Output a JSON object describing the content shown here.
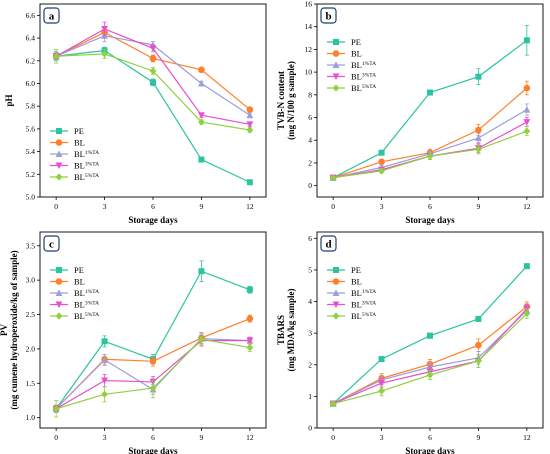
{
  "chart_data": [
    {
      "type": "line",
      "panel_label": "a",
      "xlabel": "Storage days",
      "ylabel": "pH",
      "x": [
        0,
        3,
        6,
        9,
        12
      ],
      "xlim": [
        -1,
        13
      ],
      "ylim": [
        5.0,
        6.7
      ],
      "yticks": [
        5.0,
        5.2,
        5.4,
        5.6,
        5.8,
        6.0,
        6.2,
        6.4,
        6.6
      ],
      "legend_position": "bottom-left",
      "series": [
        {
          "name": "PE",
          "sup": "",
          "color": "#2cc3a0",
          "marker": "square",
          "values": [
            6.24,
            6.29,
            6.01,
            5.33,
            5.13
          ],
          "errors": [
            0.04,
            0.03,
            0.03,
            0.02,
            0.01
          ]
        },
        {
          "name": "BL",
          "sup": "",
          "color": "#ff7f2a",
          "marker": "circle",
          "values": [
            6.24,
            6.45,
            6.22,
            6.12,
            5.77
          ],
          "errors": [
            0.03,
            0.04,
            0.03,
            0.02,
            0.02
          ]
        },
        {
          "name": "BL",
          "sup": "1%TA",
          "color": "#9aa0d8",
          "marker": "triangle-up",
          "values": [
            6.24,
            6.42,
            6.34,
            6.0,
            5.72
          ],
          "errors": [
            0.03,
            0.05,
            0.03,
            0.02,
            0.02
          ]
        },
        {
          "name": "BL",
          "sup": "3%TA",
          "color": "#e94fcf",
          "marker": "triangle-down",
          "values": [
            6.24,
            6.48,
            6.31,
            5.72,
            5.64
          ],
          "errors": [
            0.03,
            0.06,
            0.03,
            0.02,
            0.02
          ]
        },
        {
          "name": "BL",
          "sup": "5%TA",
          "color": "#8fd13f",
          "marker": "diamond",
          "values": [
            6.24,
            6.26,
            6.11,
            5.66,
            5.59
          ],
          "errors": [
            0.06,
            0.04,
            0.03,
            0.02,
            0.02
          ]
        }
      ]
    },
    {
      "type": "line",
      "panel_label": "b",
      "xlabel": "Storage days",
      "ylabel": "TVB-N content",
      "ylabel2": "(mg N/100 g sample)",
      "x": [
        0,
        3,
        6,
        9,
        12
      ],
      "xlim": [
        -1,
        13
      ],
      "ylim": [
        -1,
        16
      ],
      "yticks": [
        0,
        2,
        4,
        6,
        8,
        10,
        12,
        14,
        16
      ],
      "legend_position": "top-left",
      "series": [
        {
          "name": "PE",
          "sup": "",
          "color": "#2cc3a0",
          "marker": "square",
          "values": [
            0.7,
            2.9,
            8.2,
            9.6,
            12.8
          ],
          "errors": [
            0.1,
            0.2,
            0.2,
            0.7,
            1.3
          ]
        },
        {
          "name": "BL",
          "sup": "",
          "color": "#ff7f2a",
          "marker": "circle",
          "values": [
            0.7,
            2.1,
            2.9,
            4.9,
            8.6
          ],
          "errors": [
            0.1,
            0.2,
            0.3,
            0.5,
            0.6
          ]
        },
        {
          "name": "BL",
          "sup": "1%TA",
          "color": "#9aa0d8",
          "marker": "triangle-up",
          "values": [
            0.7,
            1.6,
            2.8,
            4.2,
            6.7
          ],
          "errors": [
            0.1,
            0.2,
            0.3,
            0.4,
            0.5
          ]
        },
        {
          "name": "BL",
          "sup": "3%TA",
          "color": "#e94fcf",
          "marker": "triangle-down",
          "values": [
            0.7,
            1.4,
            2.6,
            3.3,
            5.6
          ],
          "errors": [
            0.1,
            0.2,
            0.3,
            0.4,
            0.4
          ]
        },
        {
          "name": "BL",
          "sup": "5%TA",
          "color": "#8fd13f",
          "marker": "diamond",
          "values": [
            0.7,
            1.3,
            2.6,
            3.2,
            4.8
          ],
          "errors": [
            0.1,
            0.2,
            0.3,
            0.4,
            0.4
          ]
        }
      ]
    },
    {
      "type": "line",
      "panel_label": "c",
      "xlabel": "Storage days",
      "ylabel": "PV",
      "ylabel2": "(mg cumene hydroperoxide/kg of sample)",
      "x": [
        0,
        3,
        6,
        9,
        12
      ],
      "xlim": [
        -1,
        13
      ],
      "ylim": [
        0.85,
        3.7
      ],
      "yticks": [
        1.0,
        1.5,
        2.0,
        2.5,
        3.0,
        3.5
      ],
      "legend_position": "top-left",
      "series": [
        {
          "name": "PE",
          "sup": "",
          "color": "#2cc3a0",
          "marker": "square",
          "values": [
            1.13,
            2.11,
            1.85,
            3.13,
            2.86
          ],
          "errors": [
            0.05,
            0.08,
            0.07,
            0.15,
            0.05
          ]
        },
        {
          "name": "BL",
          "sup": "",
          "color": "#ff7f2a",
          "marker": "circle",
          "values": [
            1.13,
            1.85,
            1.82,
            2.16,
            2.44
          ],
          "errors": [
            0.05,
            0.07,
            0.07,
            0.08,
            0.05
          ]
        },
        {
          "name": "BL",
          "sup": "1%TA",
          "color": "#9aa0d8",
          "marker": "triangle-up",
          "values": [
            1.13,
            1.84,
            1.41,
            2.15,
            2.12
          ],
          "errors": [
            0.05,
            0.08,
            0.07,
            0.09,
            0.05
          ]
        },
        {
          "name": "BL",
          "sup": "3%TA",
          "color": "#e94fcf",
          "marker": "triangle-down",
          "values": [
            1.13,
            1.54,
            1.52,
            2.12,
            2.12
          ],
          "errors": [
            0.05,
            0.09,
            0.08,
            0.08,
            0.05
          ]
        },
        {
          "name": "BL",
          "sup": "5%TA",
          "color": "#8fd13f",
          "marker": "diamond",
          "values": [
            1.13,
            1.34,
            1.43,
            2.14,
            2.02
          ],
          "errors": [
            0.12,
            0.11,
            0.14,
            0.08,
            0.06
          ]
        }
      ]
    },
    {
      "type": "line",
      "panel_label": "d",
      "xlabel": "Storage days",
      "ylabel": "TBARS",
      "ylabel2": "(mg MDA/kg sample)",
      "x": [
        0,
        3,
        6,
        9,
        12
      ],
      "xlim": [
        -1,
        13
      ],
      "ylim": [
        0,
        6.2
      ],
      "yticks": [
        0,
        1,
        2,
        3,
        4,
        5,
        6
      ],
      "legend_position": "top-left",
      "series": [
        {
          "name": "PE",
          "sup": "",
          "color": "#2cc3a0",
          "marker": "square",
          "values": [
            0.77,
            2.18,
            2.92,
            3.45,
            5.12
          ],
          "errors": [
            0.05,
            0.07,
            0.08,
            0.08,
            0.07
          ]
        },
        {
          "name": "BL",
          "sup": "",
          "color": "#ff7f2a",
          "marker": "circle",
          "values": [
            0.77,
            1.57,
            2.02,
            2.62,
            3.84
          ],
          "errors": [
            0.05,
            0.15,
            0.15,
            0.2,
            0.15
          ]
        },
        {
          "name": "BL",
          "sup": "1%TA",
          "color": "#9aa0d8",
          "marker": "triangle-up",
          "values": [
            0.77,
            1.52,
            1.93,
            2.22,
            3.72
          ],
          "errors": [
            0.05,
            0.15,
            0.15,
            0.2,
            0.15
          ]
        },
        {
          "name": "BL",
          "sup": "3%TA",
          "color": "#e94fcf",
          "marker": "triangle-down",
          "values": [
            0.77,
            1.42,
            1.78,
            2.12,
            3.77
          ],
          "errors": [
            0.05,
            0.15,
            0.15,
            0.2,
            0.15
          ]
        },
        {
          "name": "BL",
          "sup": "5%TA",
          "color": "#8fd13f",
          "marker": "diamond",
          "values": [
            0.77,
            1.17,
            1.68,
            2.12,
            3.62
          ],
          "errors": [
            0.05,
            0.15,
            0.15,
            0.2,
            0.15
          ]
        }
      ]
    }
  ]
}
